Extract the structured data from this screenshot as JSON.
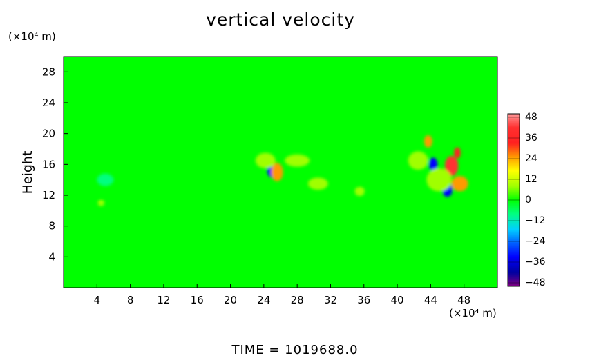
{
  "chart_data": {
    "type": "heatmap",
    "title": "vertical velocity",
    "xlabel": "",
    "ylabel": "Height",
    "x_unit": "(×10⁴ m)",
    "y_unit": "(×10⁴ m)",
    "xlim": [
      0,
      52
    ],
    "ylim": [
      0,
      30
    ],
    "x_ticks": [
      4,
      8,
      12,
      16,
      20,
      24,
      28,
      32,
      36,
      40,
      44,
      48
    ],
    "y_ticks": [
      4,
      8,
      12,
      16,
      20,
      24,
      28
    ],
    "colorbar": {
      "range": [
        -48,
        48
      ],
      "labels": [
        "48",
        "36",
        "24",
        "12",
        "0",
        "−12",
        "−24",
        "−36",
        "−48"
      ],
      "label_values": [
        48,
        36,
        24,
        12,
        0,
        -12,
        -24,
        -36,
        -48
      ]
    },
    "background_value": 0,
    "features": [
      {
        "x": 25.0,
        "y": 15.3,
        "value": -30,
        "rx": 0.6,
        "ry": 1.0
      },
      {
        "x": 25.6,
        "y": 15.0,
        "value": 22,
        "rx": 0.7,
        "ry": 1.2
      },
      {
        "x": 24.2,
        "y": 16.5,
        "value": 8,
        "rx": 1.2,
        "ry": 1.0
      },
      {
        "x": 44.3,
        "y": 16.0,
        "value": -30,
        "rx": 0.5,
        "ry": 0.9
      },
      {
        "x": 43.7,
        "y": 19.0,
        "value": 20,
        "rx": 0.5,
        "ry": 0.8
      },
      {
        "x": 46.5,
        "y": 15.8,
        "value": 38,
        "rx": 0.8,
        "ry": 1.3
      },
      {
        "x": 47.2,
        "y": 17.5,
        "value": 30,
        "rx": 0.4,
        "ry": 0.7
      },
      {
        "x": 46.0,
        "y": 12.7,
        "value": -30,
        "rx": 0.6,
        "ry": 0.9
      },
      {
        "x": 47.5,
        "y": 13.5,
        "value": 20,
        "rx": 1.0,
        "ry": 1.0
      },
      {
        "x": 45.0,
        "y": 14.0,
        "value": 10,
        "rx": 1.5,
        "ry": 1.5
      },
      {
        "x": 42.5,
        "y": 16.5,
        "value": 10,
        "rx": 1.2,
        "ry": 1.2
      },
      {
        "x": 35.5,
        "y": 12.5,
        "value": 10,
        "rx": 0.6,
        "ry": 0.6
      },
      {
        "x": 30.5,
        "y": 13.5,
        "value": 7,
        "rx": 1.2,
        "ry": 0.8
      },
      {
        "x": 28.0,
        "y": 16.5,
        "value": 6,
        "rx": 1.5,
        "ry": 0.8
      },
      {
        "x": 5.0,
        "y": 14.0,
        "value": -5,
        "rx": 1.0,
        "ry": 0.8
      },
      {
        "x": 4.5,
        "y": 11.0,
        "value": 6,
        "rx": 0.4,
        "ry": 0.4
      }
    ],
    "time_label": "TIME  =  1019688.0"
  }
}
